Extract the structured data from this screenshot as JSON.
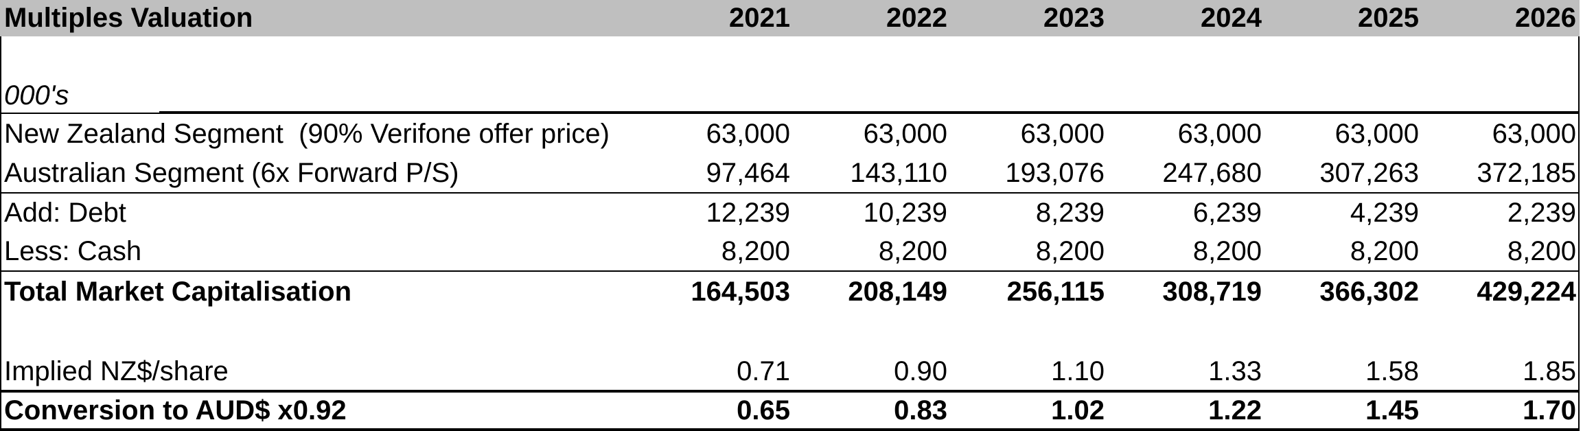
{
  "table": {
    "title": "Multiples Valuation",
    "units_label": "000's",
    "years": [
      "2021",
      "2022",
      "2023",
      "2024",
      "2025",
      "2026"
    ],
    "rows": [
      {
        "label": "New Zealand Segment  (90% Verifone offer price)",
        "values": [
          "63,000",
          "63,000",
          "63,000",
          "63,000",
          "63,000",
          "63,000"
        ]
      },
      {
        "label": "Australian Segment (6x Forward P/S)",
        "values": [
          "97,464",
          "143,110",
          "193,076",
          "247,680",
          "307,263",
          "372,185"
        ]
      },
      {
        "label": "Add: Debt",
        "values": [
          "12,239",
          "10,239",
          "8,239",
          "6,239",
          "4,239",
          "2,239"
        ]
      },
      {
        "label": "Less: Cash",
        "values": [
          "8,200",
          "8,200",
          "8,200",
          "8,200",
          "8,200",
          "8,200"
        ]
      },
      {
        "label": "Total Market Capitalisation",
        "values": [
          "164,503",
          "208,149",
          "256,115",
          "308,719",
          "366,302",
          "429,224"
        ]
      },
      {
        "label": "Implied NZ$/share",
        "values": [
          "0.71",
          "0.90",
          "1.10",
          "1.33",
          "1.58",
          "1.85"
        ]
      },
      {
        "label": "Conversion to AUD$ x0.92",
        "values": [
          "0.65",
          "0.83",
          "1.02",
          "1.22",
          "1.45",
          "1.70"
        ]
      }
    ],
    "colors": {
      "header_bg": "#bfbfbf",
      "border": "#000000"
    }
  }
}
